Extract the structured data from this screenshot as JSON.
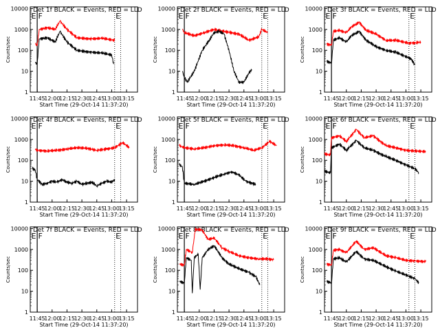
{
  "colors": {
    "events": "#000000",
    "lld": "#ff0000"
  },
  "shared": {
    "title_suffix": " BLACK = Events, RED = LLD",
    "xlabel": "Start Time (29-Oct-14 11:37:20)",
    "ylabel": "Counts/sec",
    "xticks": [
      "11:45",
      "12:00",
      "12:15",
      "12:30",
      "12:45",
      "13:00",
      "13:15"
    ],
    "yticks": [
      "1",
      "10",
      "100",
      "1000",
      "10000"
    ],
    "markers": [
      "E",
      "F",
      "E"
    ],
    "xlim_minutes": [
      -7,
      101
    ],
    "ylim": [
      1,
      12000
    ],
    "scale": "log",
    "vlines_minutes": [
      0,
      78,
      84
    ]
  },
  "chart_data": [
    {
      "type": "line",
      "title": "Det 1f BLACK = Events, RED = LLD",
      "xticks": [
        "11:45",
        "12:00",
        "12:15",
        "12:30",
        "12:45",
        "13:00",
        "13:15"
      ],
      "series": [
        {
          "key": "lld",
          "points": [
            [
              -2,
              200
            ],
            [
              0,
              175
            ],
            [
              2,
              1000
            ],
            [
              10,
              1200
            ],
            [
              18,
              1000
            ],
            [
              23,
              2500
            ],
            [
              30,
              1000
            ],
            [
              40,
              400
            ],
            [
              55,
              350
            ],
            [
              65,
              380
            ],
            [
              78,
              300
            ]
          ]
        },
        {
          "key": "events",
          "points": [
            [
              -2,
              25
            ],
            [
              0,
              23
            ],
            [
              2,
              350
            ],
            [
              10,
              400
            ],
            [
              18,
              250
            ],
            [
              23,
              800
            ],
            [
              30,
              250
            ],
            [
              40,
              100
            ],
            [
              55,
              80
            ],
            [
              65,
              75
            ],
            [
              75,
              60
            ],
            [
              77,
              22
            ]
          ]
        }
      ]
    },
    {
      "type": "line",
      "title": "Det 2f BLACK = Events, RED = LLD",
      "xticks": [
        "11:45",
        "12:00",
        "12:15",
        "12:30",
        "12:45",
        "13:00",
        "13:15"
      ],
      "series": [
        {
          "key": "lld",
          "points": [
            [
              -2,
              1000
            ],
            [
              0,
              700
            ],
            [
              10,
              500
            ],
            [
              20,
              700
            ],
            [
              30,
              1000
            ],
            [
              40,
              800
            ],
            [
              55,
              600
            ],
            [
              65,
              300
            ],
            [
              75,
              450
            ],
            [
              78,
              1000
            ],
            [
              84,
              700
            ]
          ]
        },
        {
          "key": "events",
          "points": [
            [
              -2,
              10
            ],
            [
              0,
              5
            ],
            [
              3,
              3
            ],
            [
              10,
              10
            ],
            [
              18,
              100
            ],
            [
              25,
              300
            ],
            [
              30,
              700
            ],
            [
              35,
              800
            ],
            [
              40,
              600
            ],
            [
              45,
              100
            ],
            [
              50,
              10
            ],
            [
              55,
              3
            ],
            [
              60,
              3
            ],
            [
              65,
              8
            ],
            [
              68,
              12
            ]
          ]
        }
      ]
    },
    {
      "type": "line",
      "title": "Det 3f BLACK = Events, RED = LLD",
      "xticks": [
        "11:45",
        "12:00",
        "12:15",
        "12:30",
        "12:45",
        "13:00",
        "13:15"
      ],
      "series": [
        {
          "key": "lld",
          "points": [
            [
              -5,
              200
            ],
            [
              0,
              180
            ],
            [
              2,
              800
            ],
            [
              8,
              900
            ],
            [
              15,
              700
            ],
            [
              20,
              1300
            ],
            [
              28,
              2200
            ],
            [
              35,
              900
            ],
            [
              45,
              600
            ],
            [
              55,
              300
            ],
            [
              65,
              300
            ],
            [
              78,
              220
            ],
            [
              85,
              230
            ],
            [
              90,
              250
            ]
          ]
        },
        {
          "key": "events",
          "points": [
            [
              -5,
              30
            ],
            [
              0,
              25
            ],
            [
              2,
              300
            ],
            [
              8,
              400
            ],
            [
              15,
              250
            ],
            [
              20,
              500
            ],
            [
              28,
              800
            ],
            [
              35,
              300
            ],
            [
              45,
              150
            ],
            [
              55,
              100
            ],
            [
              65,
              80
            ],
            [
              75,
              50
            ],
            [
              80,
              40
            ],
            [
              84,
              20
            ]
          ]
        }
      ]
    },
    {
      "type": "line",
      "title": "Det 4f BLACK = Events, RED = LLD",
      "xticks": [
        "11:45",
        "12:00",
        "12:15",
        "12:30",
        "12:45",
        "13:00",
        "13:15"
      ],
      "series": [
        {
          "key": "lld",
          "points": [
            [
              -2,
              350
            ],
            [
              0,
              300
            ],
            [
              10,
              280
            ],
            [
              20,
              300
            ],
            [
              30,
              350
            ],
            [
              40,
              400
            ],
            [
              50,
              380
            ],
            [
              60,
              300
            ],
            [
              70,
              350
            ],
            [
              78,
              400
            ],
            [
              86,
              700
            ],
            [
              93,
              400
            ]
          ]
        },
        {
          "key": "events",
          "points": [
            [
              -5,
              40
            ],
            [
              -2,
              35
            ],
            [
              0,
              12
            ],
            [
              5,
              7
            ],
            [
              10,
              8
            ],
            [
              15,
              10
            ],
            [
              20,
              9
            ],
            [
              25,
              12
            ],
            [
              30,
              9
            ],
            [
              35,
              8
            ],
            [
              40,
              10
            ],
            [
              45,
              7
            ],
            [
              50,
              8
            ],
            [
              55,
              9
            ],
            [
              60,
              6
            ],
            [
              65,
              8
            ],
            [
              70,
              10
            ],
            [
              75,
              9
            ],
            [
              78,
              12
            ]
          ]
        }
      ]
    },
    {
      "type": "line",
      "title": "Det 5f BLACK = Events, RED = LLD",
      "xticks": [
        "11:45",
        "12:00",
        "12:15",
        "12:30",
        "12:45",
        "13:00",
        "13:15"
      ],
      "series": [
        {
          "key": "lld",
          "points": [
            [
              -5,
              500
            ],
            [
              0,
              400
            ],
            [
              10,
              350
            ],
            [
              20,
              400
            ],
            [
              30,
              500
            ],
            [
              40,
              550
            ],
            [
              50,
              500
            ],
            [
              60,
              400
            ],
            [
              70,
              300
            ],
            [
              78,
              400
            ],
            [
              86,
              800
            ],
            [
              93,
              500
            ]
          ]
        },
        {
          "key": "events",
          "points": [
            [
              -5,
              60
            ],
            [
              -2,
              50
            ],
            [
              0,
              8
            ],
            [
              10,
              7
            ],
            [
              20,
              10
            ],
            [
              30,
              15
            ],
            [
              40,
              22
            ],
            [
              48,
              28
            ],
            [
              55,
              20
            ],
            [
              62,
              10
            ],
            [
              68,
              8
            ],
            [
              72,
              7
            ]
          ]
        }
      ]
    },
    {
      "type": "line",
      "title": "Det 6f BLACK = Events, RED = LLD",
      "xticks": [
        "11:45",
        "12:00",
        "12:15",
        "12:30",
        "12:45",
        "13:00",
        "13:15"
      ],
      "series": [
        {
          "key": "lld",
          "points": [
            [
              -7,
              200
            ],
            [
              -1,
              180
            ],
            [
              0,
              1200
            ],
            [
              8,
              1500
            ],
            [
              15,
              800
            ],
            [
              25,
              3000
            ],
            [
              33,
              1200
            ],
            [
              42,
              1500
            ],
            [
              55,
              500
            ],
            [
              65,
              400
            ],
            [
              75,
              300
            ],
            [
              84,
              280
            ],
            [
              95,
              260
            ]
          ]
        },
        {
          "key": "events",
          "points": [
            [
              -7,
              30
            ],
            [
              -1,
              25
            ],
            [
              0,
              400
            ],
            [
              8,
              600
            ],
            [
              15,
              300
            ],
            [
              25,
              900
            ],
            [
              33,
              400
            ],
            [
              42,
              300
            ],
            [
              55,
              150
            ],
            [
              65,
              100
            ],
            [
              75,
              60
            ],
            [
              84,
              40
            ],
            [
              88,
              25
            ]
          ]
        }
      ]
    },
    {
      "type": "line",
      "title": "Det 7f BLACK = Events, RED = LLD",
      "xticks": [
        "11:45",
        "12:00",
        "12:15",
        "12:30",
        "12:45",
        "13:00",
        "13:15"
      ],
      "series": []
    },
    {
      "type": "line",
      "title": "Det 8f BLACK = Events, RED = LLD",
      "xticks": [
        "11:45",
        "12:00",
        "12:15",
        "12:30",
        "12:45",
        "13:00",
        "13:15"
      ],
      "series": [
        {
          "key": "lld",
          "points": [
            [
              -5,
              200
            ],
            [
              0,
              180
            ],
            [
              2,
              1000
            ],
            [
              8,
              700
            ],
            [
              11,
              9000
            ],
            [
              18,
              8500
            ],
            [
              24,
              3000
            ],
            [
              30,
              3500
            ],
            [
              38,
              1200
            ],
            [
              45,
              800
            ],
            [
              55,
              500
            ],
            [
              65,
              400
            ],
            [
              75,
              350
            ],
            [
              84,
              350
            ],
            [
              90,
              320
            ]
          ]
        },
        {
          "key": "events",
          "points": [
            [
              -5,
              30
            ],
            [
              0,
              25
            ],
            [
              2,
              400
            ],
            [
              7,
              300
            ],
            [
              8,
              8
            ],
            [
              10,
              400
            ],
            [
              14,
              600
            ],
            [
              16,
              12
            ],
            [
              18,
              400
            ],
            [
              24,
              1000
            ],
            [
              30,
              1500
            ],
            [
              38,
              400
            ],
            [
              45,
              200
            ],
            [
              55,
              120
            ],
            [
              65,
              80
            ],
            [
              72,
              50
            ],
            [
              76,
              20
            ]
          ]
        }
      ]
    },
    {
      "type": "line",
      "title": "Det 9f BLACK = Events, RED = LLD",
      "xticks": [
        "11:45",
        "12:00",
        "12:15",
        "12:30",
        "12:45",
        "13:00",
        "13:15"
      ],
      "series": [
        {
          "key": "lld",
          "points": [
            [
              -5,
              200
            ],
            [
              0,
              180
            ],
            [
              2,
              900
            ],
            [
              8,
              1000
            ],
            [
              15,
              700
            ],
            [
              25,
              2500
            ],
            [
              33,
              1000
            ],
            [
              42,
              1200
            ],
            [
              55,
              500
            ],
            [
              65,
              400
            ],
            [
              75,
              300
            ],
            [
              84,
              280
            ],
            [
              95,
              260
            ]
          ]
        },
        {
          "key": "events",
          "points": [
            [
              -5,
              30
            ],
            [
              0,
              25
            ],
            [
              2,
              350
            ],
            [
              8,
              400
            ],
            [
              15,
              250
            ],
            [
              25,
              800
            ],
            [
              33,
              350
            ],
            [
              42,
              300
            ],
            [
              55,
              150
            ],
            [
              65,
              90
            ],
            [
              75,
              60
            ],
            [
              84,
              40
            ],
            [
              88,
              25
            ]
          ]
        }
      ]
    }
  ]
}
